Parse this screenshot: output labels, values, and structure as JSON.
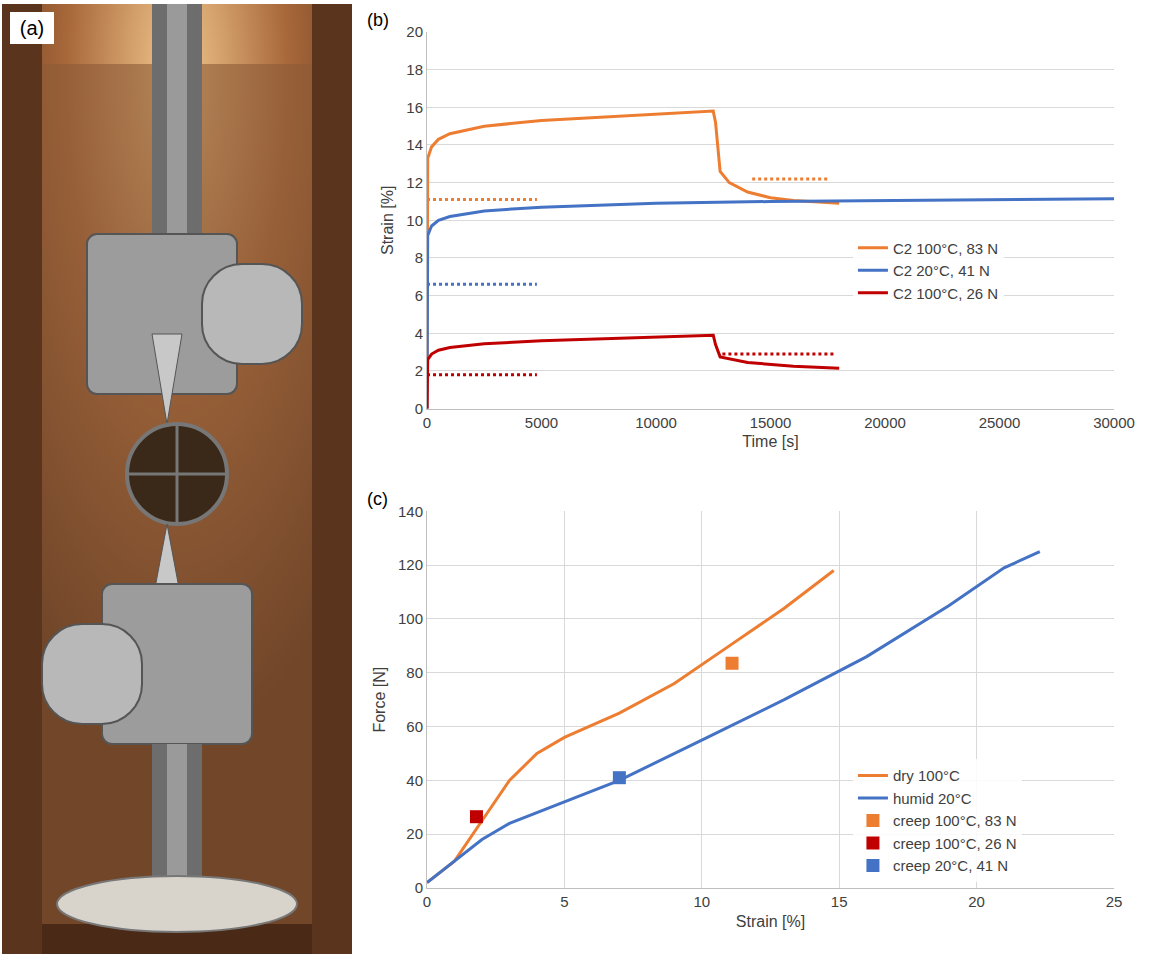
{
  "photo_panel": {
    "panel_label": "(a)"
  },
  "chart_data": [
    {
      "type": "line",
      "panel_label": "(b)",
      "x_label": "Time [s]",
      "y_label": "Strain [%]",
      "xlim": [
        0,
        30000
      ],
      "xticks": [
        0,
        5000,
        10000,
        15000,
        20000,
        25000,
        30000
      ],
      "ylim": [
        0,
        20
      ],
      "yticks": [
        0,
        2,
        4,
        6,
        8,
        10,
        12,
        14,
        16,
        18,
        20
      ],
      "grid": "y",
      "legend": "right",
      "series": [
        {
          "name": "C2 100°C, 83 N",
          "color": "#ED7D31",
          "line_style": "solid",
          "x": [
            0,
            30,
            200,
            500,
            1000,
            2500,
            5000,
            8000,
            10000,
            12500,
            12600,
            12800,
            13200,
            14000,
            15000,
            16000,
            18000
          ],
          "values": [
            0,
            13.3,
            13.9,
            14.3,
            14.6,
            15.0,
            15.3,
            15.5,
            15.6,
            15.8,
            15.2,
            12.6,
            12.0,
            11.5,
            11.2,
            11.05,
            10.9
          ]
        },
        {
          "name": "C2 20°C, 41 N",
          "color": "#4472C4",
          "line_style": "solid",
          "x": [
            0,
            30,
            200,
            500,
            1000,
            2500,
            5000,
            10000,
            15000,
            20000,
            25000,
            30000
          ],
          "values": [
            0,
            9.2,
            9.7,
            10.0,
            10.2,
            10.5,
            10.7,
            10.9,
            11.0,
            11.05,
            11.1,
            11.15
          ]
        },
        {
          "name": "C2 100°C, 26 N",
          "color": "#C00000",
          "line_style": "solid",
          "x": [
            0,
            30,
            200,
            500,
            1000,
            2500,
            5000,
            10000,
            12500,
            12600,
            12800,
            14000,
            16000,
            18000
          ],
          "values": [
            0,
            2.6,
            2.9,
            3.1,
            3.25,
            3.45,
            3.6,
            3.8,
            3.9,
            3.4,
            2.75,
            2.45,
            2.25,
            2.15
          ]
        },
        {
          "color": "#ED7D31",
          "line_style": "dotted",
          "x": [
            0,
            4800
          ],
          "values": [
            11.1,
            11.1
          ]
        },
        {
          "color": "#ED7D31",
          "line_style": "dotted",
          "x": [
            14200,
            17500
          ],
          "values": [
            12.2,
            12.2
          ]
        },
        {
          "color": "#4472C4",
          "line_style": "dotted",
          "x": [
            0,
            4800
          ],
          "values": [
            6.6,
            6.6
          ]
        },
        {
          "color": "#C00000",
          "line_style": "dotted",
          "x": [
            0,
            4800
          ],
          "values": [
            1.8,
            1.8
          ]
        },
        {
          "color": "#C00000",
          "line_style": "dotted",
          "x": [
            12900,
            17800
          ],
          "values": [
            2.9,
            2.9
          ]
        }
      ]
    },
    {
      "type": "line",
      "panel_label": "(c)",
      "x_label": "Strain [%]",
      "y_label": "Force [N]",
      "xlim": [
        0,
        25
      ],
      "xticks": [
        0,
        5,
        10,
        15,
        20,
        25
      ],
      "ylim": [
        0,
        140
      ],
      "yticks": [
        0,
        20,
        40,
        60,
        80,
        100,
        120,
        140
      ],
      "grid": true,
      "legend": "lower right",
      "series": [
        {
          "name": "dry 100°C",
          "color": "#ED7D31",
          "type": "line",
          "line_style": "solid",
          "x": [
            0,
            1,
            2,
            3,
            4,
            5,
            7,
            9,
            11,
            13,
            14.8
          ],
          "values": [
            2,
            10,
            25,
            40,
            50,
            56,
            65,
            76,
            90,
            104,
            118
          ]
        },
        {
          "name": "humid 20°C",
          "color": "#4472C4",
          "type": "line",
          "line_style": "solid",
          "x": [
            0,
            1,
            2,
            3,
            5,
            7,
            10,
            13,
            16,
            19,
            21,
            22.3
          ],
          "values": [
            2,
            10,
            18,
            24,
            32,
            40,
            55,
            70,
            86,
            105,
            119,
            125
          ]
        },
        {
          "name": "creep 100°C, 83 N",
          "color": "#ED7D31",
          "type": "scatter",
          "marker": "square",
          "x": [
            11.1
          ],
          "values": [
            83.5
          ]
        },
        {
          "name": "creep 100°C, 26 N",
          "color": "#C00000",
          "type": "scatter",
          "marker": "square",
          "x": [
            1.8
          ],
          "values": [
            26.5
          ]
        },
        {
          "name": "creep 20°C, 41 N",
          "color": "#4472C4",
          "type": "scatter",
          "marker": "square",
          "x": [
            7.0
          ],
          "values": [
            41
          ]
        }
      ]
    }
  ]
}
